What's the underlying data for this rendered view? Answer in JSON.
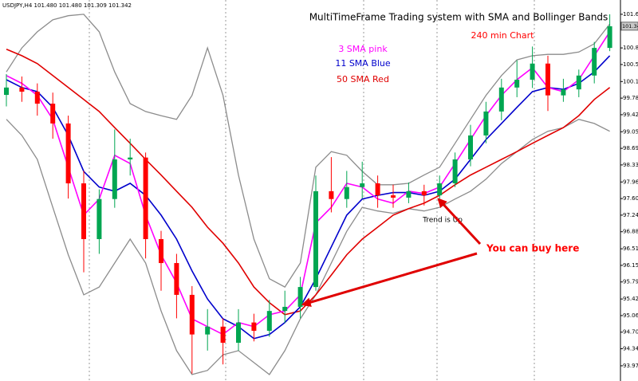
{
  "chart_data": {
    "type": "candlestick",
    "header": "USDJPY,H4 101.480 101.480 101.309 101.342",
    "title": "MultiTimeFrame Trading system with SMA and Bollinger Bands",
    "annotations": [
      {
        "text": "240 min  Chart",
        "color": "#ff0000"
      },
      {
        "text": "Trend is Up",
        "color": "#000000"
      },
      {
        "text": "You can buy here",
        "color": "#ff0000"
      }
    ],
    "ylim": [
      93.64,
      101.91
    ],
    "yticks": [
      {
        "value": 101.6,
        "label": "101.600"
      },
      {
        "value": 100.87,
        "label": "100.870"
      },
      {
        "value": 100.51,
        "label": "100.510"
      },
      {
        "value": 100.14,
        "label": "100.140"
      },
      {
        "value": 99.78,
        "label": "99.780"
      },
      {
        "value": 99.42,
        "label": "99.420"
      },
      {
        "value": 99.05,
        "label": "99.050"
      },
      {
        "value": 98.69,
        "label": "98.690"
      },
      {
        "value": 98.33,
        "label": "98.330"
      },
      {
        "value": 97.96,
        "label": "97.960"
      },
      {
        "value": 97.6,
        "label": "97.600"
      },
      {
        "value": 97.24,
        "label": "97.240"
      },
      {
        "value": 96.88,
        "label": "96.880"
      },
      {
        "value": 96.51,
        "label": "96.510"
      },
      {
        "value": 96.15,
        "label": "96.150"
      },
      {
        "value": 95.79,
        "label": "95.790"
      },
      {
        "value": 95.42,
        "label": "95.420"
      },
      {
        "value": 95.06,
        "label": "95.060"
      },
      {
        "value": 94.7,
        "label": "94.700"
      },
      {
        "value": 94.34,
        "label": "94.340"
      },
      {
        "value": 93.97,
        "label": "93.970"
      }
    ],
    "current_price": 101.342,
    "up_color": "#00a651",
    "down_color": "#ff0000",
    "open": [
      99.85,
      100.01,
      99.92,
      99.66,
      99.23,
      97.93,
      96.72,
      97.59,
      98.45,
      98.49,
      96.72,
      96.2,
      95.51,
      94.65,
      94.82,
      94.47,
      94.91,
      94.73,
      95.16,
      95.25,
      95.68,
      97.76,
      97.59,
      97.85,
      97.93,
      97.67,
      97.62,
      97.76,
      97.67,
      97.93,
      98.45,
      98.97,
      99.49,
      100.01,
      100.18,
      100.53,
      99.84,
      99.97,
      100.27,
      100.87
    ],
    "high": [
      100.3,
      100.25,
      100.1,
      99.9,
      99.4,
      98.2,
      97.8,
      99.1,
      98.9,
      98.6,
      96.9,
      96.4,
      95.7,
      95.2,
      95.0,
      95.2,
      95.1,
      95.4,
      95.6,
      95.9,
      98.1,
      98.5,
      98.2,
      98.4,
      98.1,
      97.9,
      97.95,
      97.9,
      98.1,
      98.6,
      99.2,
      99.7,
      100.2,
      100.6,
      100.9,
      100.7,
      100.2,
      100.4,
      101.0,
      101.6
    ],
    "low": [
      99.6,
      99.7,
      99.4,
      98.9,
      97.6,
      96.0,
      96.4,
      97.4,
      98.1,
      96.3,
      95.6,
      95.0,
      93.8,
      94.3,
      94.0,
      94.3,
      94.5,
      94.6,
      94.9,
      95.0,
      95.6,
      97.3,
      97.4,
      97.6,
      97.4,
      97.4,
      97.5,
      97.45,
      97.55,
      97.85,
      98.3,
      98.8,
      99.3,
      99.8,
      100.0,
      99.5,
      99.7,
      99.8,
      100.1,
      100.8
    ],
    "close": [
      100.01,
      99.92,
      99.66,
      99.23,
      97.93,
      96.72,
      97.59,
      98.45,
      98.49,
      96.72,
      96.2,
      95.51,
      94.65,
      94.82,
      94.47,
      94.91,
      94.73,
      95.16,
      95.25,
      95.68,
      97.76,
      97.59,
      97.85,
      97.93,
      97.67,
      97.62,
      97.76,
      97.67,
      97.93,
      98.45,
      98.97,
      99.49,
      100.01,
      100.18,
      100.53,
      99.84,
      99.97,
      100.27,
      100.87,
      101.34
    ],
    "series": [
      {
        "color": "#8c8c8c",
        "values": [
          100.35,
          100.87,
          101.22,
          101.48,
          101.57,
          101.6,
          101.22,
          100.35,
          99.66,
          99.49,
          99.4,
          99.32,
          99.84,
          100.87,
          99.84,
          98.11,
          96.72,
          95.86,
          95.68,
          96.2,
          98.28,
          98.62,
          98.54,
          98.19,
          97.9,
          97.9,
          97.93,
          98.11,
          98.28,
          98.8,
          99.32,
          99.84,
          100.27,
          100.61,
          100.7,
          100.73,
          100.73,
          100.78,
          100.96,
          101.39
        ]
      },
      {
        "color": "#8c8c8c",
        "values": [
          99.32,
          98.97,
          98.45,
          97.41,
          96.38,
          95.51,
          95.68,
          96.2,
          96.72,
          96.2,
          95.16,
          94.3,
          93.78,
          93.87,
          94.21,
          94.3,
          94.04,
          93.78,
          94.3,
          94.99,
          95.51,
          96.2,
          96.89,
          97.41,
          97.33,
          97.28,
          97.38,
          97.33,
          97.41,
          97.59,
          97.76,
          98.02,
          98.36,
          98.62,
          98.88,
          99.06,
          99.14,
          99.32,
          99.23,
          99.06
        ]
      },
      {
        "name": "50 SMA Red",
        "color": "#e00000",
        "values": [
          100.84,
          100.7,
          100.53,
          100.27,
          100.01,
          99.75,
          99.49,
          99.14,
          98.8,
          98.45,
          98.11,
          97.76,
          97.41,
          96.98,
          96.63,
          96.2,
          95.68,
          95.34,
          95.08,
          95.16,
          95.51,
          95.94,
          96.38,
          96.72,
          96.98,
          97.24,
          97.38,
          97.5,
          97.67,
          97.9,
          98.11,
          98.28,
          98.45,
          98.62,
          98.8,
          98.97,
          99.14,
          99.4,
          99.75,
          100.01
        ]
      },
      {
        "name": "11 SMA Blue",
        "color": "#0000cc",
        "values": [
          100.18,
          100.01,
          99.92,
          99.58,
          98.97,
          98.19,
          97.85,
          97.76,
          97.93,
          97.67,
          97.24,
          96.72,
          96.03,
          95.42,
          94.99,
          94.82,
          94.56,
          94.65,
          94.91,
          95.25,
          95.86,
          96.55,
          97.24,
          97.59,
          97.67,
          97.73,
          97.73,
          97.67,
          97.76,
          98.02,
          98.45,
          98.88,
          99.23,
          99.58,
          99.92,
          100.01,
          99.97,
          100.1,
          100.35,
          100.7
        ]
      },
      {
        "name": "3 SMA pink",
        "color": "#ff00ff",
        "values": [
          100.27,
          100.1,
          99.84,
          99.32,
          98.28,
          97.24,
          97.59,
          98.54,
          98.36,
          97.24,
          96.38,
          95.77,
          94.99,
          94.82,
          94.65,
          94.91,
          94.82,
          95.08,
          95.16,
          95.51,
          97.07,
          97.41,
          97.93,
          97.85,
          97.59,
          97.5,
          97.76,
          97.71,
          97.85,
          98.36,
          98.88,
          99.4,
          99.84,
          100.18,
          100.44,
          100.01,
          99.92,
          100.18,
          100.7,
          101.22
        ]
      }
    ]
  }
}
